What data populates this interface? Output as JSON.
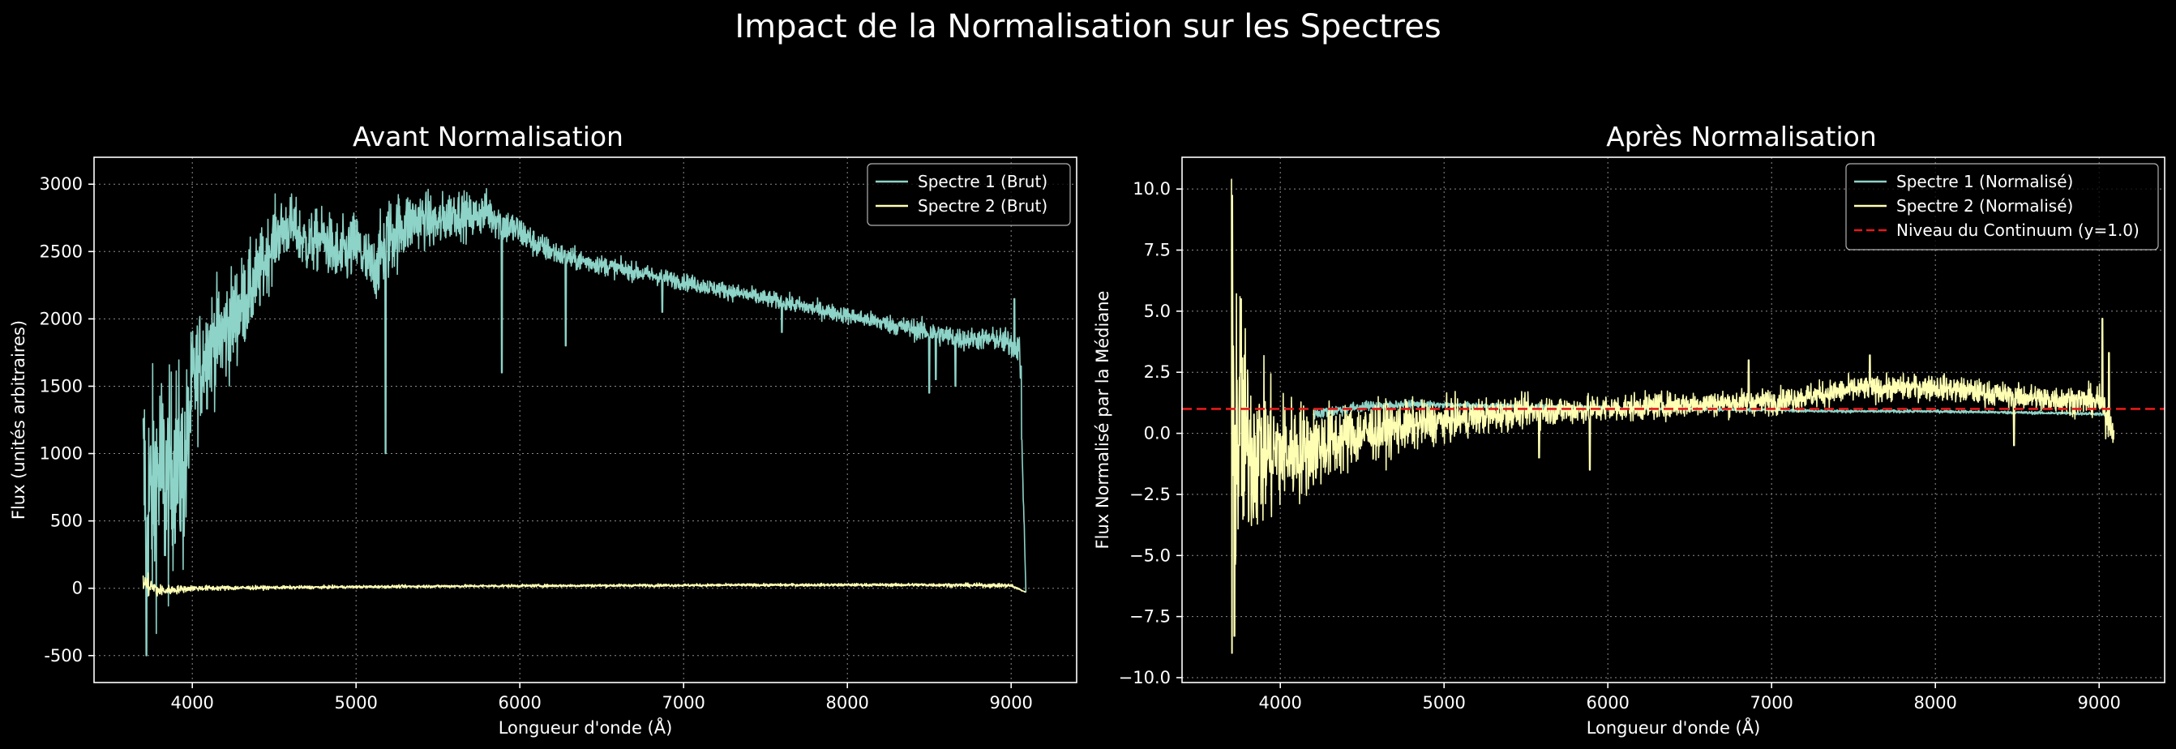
{
  "figure": {
    "suptitle": "Impact de la Normalisation sur les Spectres",
    "background": "#000000",
    "colors": {
      "series1": "#8dd3c7",
      "series2": "#feffb3",
      "continuum": "#e41a1c",
      "grid": "#8c8c8c",
      "axes": "#ffffff"
    }
  },
  "chart_data": [
    {
      "type": "line",
      "title": "Avant Normalisation",
      "xlabel": "Longueur d'onde (Å)",
      "ylabel": "Flux (unités arbitraires)",
      "xlim": [
        3400,
        9400
      ],
      "ylim": [
        -700,
        3200
      ],
      "xticks": [
        4000,
        5000,
        6000,
        7000,
        8000,
        9000
      ],
      "yticks": [
        -500,
        0,
        500,
        1000,
        1500,
        2000,
        2500,
        3000
      ],
      "grid": true,
      "legend": "top-right",
      "series": [
        {
          "name": "Spectre 1 (Brut)",
          "color": "#8dd3c7",
          "x": [
            3700,
            3750,
            3800,
            3850,
            3900,
            3950,
            4000,
            4100,
            4200,
            4300,
            4400,
            4500,
            4600,
            4700,
            4800,
            4900,
            5000,
            5100,
            5200,
            5300,
            5400,
            5500,
            5600,
            5700,
            5800,
            5900,
            6000,
            6100,
            6200,
            6300,
            6500,
            6700,
            6900,
            7100,
            7300,
            7500,
            7700,
            7900,
            8100,
            8300,
            8500,
            8700,
            8900,
            9050,
            9090
          ],
          "y": [
            800,
            600,
            900,
            700,
            1000,
            800,
            1500,
            1800,
            1900,
            2100,
            2300,
            2600,
            2700,
            2550,
            2600,
            2450,
            2550,
            2350,
            2600,
            2700,
            2750,
            2700,
            2800,
            2750,
            2800,
            2700,
            2650,
            2550,
            2500,
            2450,
            2400,
            2350,
            2300,
            2250,
            2200,
            2150,
            2100,
            2050,
            2000,
            1950,
            1900,
            1850,
            1850,
            1800,
            -30
          ],
          "noise": [
            900,
            900,
            800,
            800,
            700,
            700,
            450,
            400,
            400,
            350,
            300,
            250,
            220,
            220,
            220,
            250,
            250,
            250,
            300,
            250,
            200,
            200,
            180,
            160,
            150,
            140,
            120,
            100,
            90,
            80,
            70,
            65,
            60,
            60,
            60,
            60,
            60,
            60,
            60,
            70,
            80,
            80,
            80,
            120,
            0
          ],
          "dips": [
            [
              3720,
              -500
            ],
            [
              5180,
              1000
            ],
            [
              5890,
              1600
            ],
            [
              6280,
              1800
            ],
            [
              6870,
              2050
            ],
            [
              7600,
              1900
            ],
            [
              8500,
              1450
            ],
            [
              8540,
              1550
            ],
            [
              8660,
              1500
            ],
            [
              9020,
              2150
            ],
            [
              9060,
              1650
            ]
          ]
        },
        {
          "name": "Spectre 2 (Brut)",
          "color": "#feffb3",
          "x": [
            3700,
            3750,
            3800,
            3900,
            4000,
            4500,
            5000,
            5500,
            6000,
            6500,
            7000,
            7500,
            8000,
            8500,
            9000,
            9090
          ],
          "y": [
            40,
            10,
            -20,
            -10,
            0,
            5,
            10,
            15,
            18,
            20,
            22,
            24,
            25,
            25,
            20,
            -30
          ],
          "noise": [
            90,
            70,
            45,
            30,
            20,
            12,
            10,
            10,
            10,
            10,
            10,
            10,
            10,
            12,
            15,
            0
          ],
          "dips": []
        }
      ]
    },
    {
      "type": "line",
      "title": "Après Normalisation",
      "xlabel": "Longueur d'onde (Å)",
      "ylabel": "Flux Normalisé par la Médiane",
      "xlim": [
        3400,
        9400
      ],
      "ylim": [
        -10.2,
        11.3
      ],
      "xticks": [
        4000,
        5000,
        6000,
        7000,
        8000,
        9000
      ],
      "yticks": [
        -10.0,
        -7.5,
        -5.0,
        -2.5,
        0.0,
        2.5,
        5.0,
        7.5,
        10.0
      ],
      "ytick_labels": [
        "−10.0",
        "−7.5",
        "−5.0",
        "−2.5",
        "0.0",
        "2.5",
        "5.0",
        "7.5",
        "10.0"
      ],
      "grid": true,
      "legend": "top-right",
      "series": [
        {
          "name": "Spectre 1 (Normalisé)",
          "color": "#8dd3c7",
          "x": [
            4200,
            4500,
            4800,
            5000,
            5500,
            6000,
            6500,
            7000,
            7500,
            8000,
            8500,
            9000,
            9060
          ],
          "y": [
            0.8,
            1.1,
            1.2,
            1.15,
            1.1,
            1.05,
            1.0,
            0.95,
            0.9,
            0.9,
            0.85,
            0.8,
            0.7
          ],
          "noise": [
            0.25,
            0.2,
            0.15,
            0.12,
            0.1,
            0.08,
            0.07,
            0.06,
            0.06,
            0.06,
            0.06,
            0.06,
            0.05
          ],
          "dips": []
        },
        {
          "name": "Spectre 2 (Normalisé)",
          "color": "#feffb3",
          "x": [
            3700,
            3730,
            3760,
            3800,
            3900,
            4000,
            4200,
            4500,
            5000,
            5500,
            6000,
            6500,
            7000,
            7500,
            8000,
            8500,
            9000,
            9060,
            9090
          ],
          "y": [
            0.0,
            0.0,
            0.0,
            -0.5,
            -0.8,
            -0.8,
            -0.6,
            0.0,
            0.5,
            0.9,
            1.0,
            1.2,
            1.3,
            1.8,
            1.9,
            1.5,
            1.3,
            0.5,
            0.0
          ],
          "noise": [
            9.5,
            7.0,
            5.0,
            3.8,
            3.0,
            2.4,
            1.7,
            1.2,
            0.8,
            0.6,
            0.55,
            0.5,
            0.5,
            0.5,
            0.5,
            0.5,
            0.6,
            0.8,
            0.3
          ],
          "dips": [
            [
              3700,
              10.4
            ],
            [
              3705,
              -9.0
            ],
            [
              3720,
              -8.3
            ],
            [
              3760,
              5.5
            ],
            [
              5580,
              3.1
            ],
            [
              5580,
              -1.0
            ],
            [
              5890,
              -1.5
            ],
            [
              6860,
              3.0
            ],
            [
              7600,
              3.2
            ],
            [
              8480,
              -0.5
            ],
            [
              8660,
              1.0
            ],
            [
              9020,
              4.7
            ],
            [
              9060,
              3.3
            ]
          ]
        },
        {
          "name": "Niveau du Continuum (y=1.0)",
          "color": "#e41a1c",
          "dashed": true,
          "x": [
            3400,
            9400
          ],
          "y": [
            1.0,
            1.0
          ]
        }
      ]
    }
  ]
}
